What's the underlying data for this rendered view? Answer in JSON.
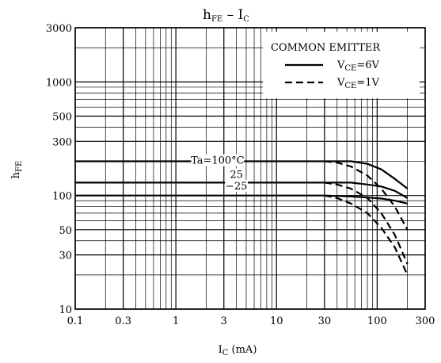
{
  "chart_data": {
    "type": "line",
    "title_main": "h",
    "title_main_sub": "FE",
    "title_dash": "–",
    "title_x": "I",
    "title_x_sub": "C",
    "xlabel_main": "I",
    "xlabel_sub": "C",
    "xlabel_unit": "(mA)",
    "ylabel_main": "h",
    "ylabel_sub": "FE",
    "x_scale": "log",
    "y_scale": "log",
    "xlim": [
      0.1,
      300
    ],
    "ylim": [
      10,
      3000
    ],
    "x_ticks": [
      {
        "value": 0.1,
        "label": "0.1"
      },
      {
        "value": 0.3,
        "label": "0.3"
      },
      {
        "value": 1,
        "label": "1"
      },
      {
        "value": 3,
        "label": "3"
      },
      {
        "value": 10,
        "label": "10"
      },
      {
        "value": 30,
        "label": "30"
      },
      {
        "value": 100,
        "label": "100"
      },
      {
        "value": 300,
        "label": "300"
      }
    ],
    "y_ticks": [
      {
        "value": 10,
        "label": "10"
      },
      {
        "value": 30,
        "label": "30"
      },
      {
        "value": 50,
        "label": "50"
      },
      {
        "value": 100,
        "label": "100"
      },
      {
        "value": 300,
        "label": "300"
      },
      {
        "value": 500,
        "label": "500"
      },
      {
        "value": 1000,
        "label": "1000"
      },
      {
        "value": 3000,
        "label": "3000"
      }
    ],
    "grid": true,
    "legend": {
      "title": "COMMON EMITTER",
      "placement": "top-right",
      "entries": [
        {
          "style": "solid",
          "label_main": "V",
          "label_sub": "CE",
          "label_rest": "=6V"
        },
        {
          "style": "dashed",
          "label_main": "V",
          "label_sub": "CE",
          "label_rest": "=1V"
        }
      ]
    },
    "annotations": [
      {
        "text": "Ta=100°C",
        "x": 2.6,
        "y": 190
      },
      {
        "text": "25",
        "x": 4.0,
        "y": 143
      },
      {
        "text": "−25",
        "x": 4.0,
        "y": 113
      }
    ],
    "series": [
      {
        "group": "Ta=100°C",
        "style": "solid",
        "x": [
          0.1,
          10,
          30,
          55,
          80,
          110,
          150,
          200
        ],
        "y": [
          200,
          200,
          200,
          200,
          190,
          170,
          140,
          115
        ]
      },
      {
        "group": "Ta=100°C",
        "style": "dashed",
        "x": [
          30,
          40,
          55,
          80,
          110,
          150,
          200
        ],
        "y": [
          200,
          195,
          180,
          150,
          115,
          80,
          50
        ]
      },
      {
        "group": "25",
        "style": "solid",
        "x": [
          0.1,
          10,
          30,
          55,
          80,
          110,
          150,
          200
        ],
        "y": [
          130,
          130,
          130,
          130,
          125,
          120,
          110,
          95
        ]
      },
      {
        "group": "25",
        "style": "dashed",
        "x": [
          30,
          40,
          55,
          80,
          110,
          150,
          200
        ],
        "y": [
          130,
          125,
          115,
          95,
          70,
          45,
          25
        ]
      },
      {
        "group": "−25",
        "style": "solid",
        "x": [
          0.1,
          10,
          30,
          55,
          80,
          110,
          150,
          200
        ],
        "y": [
          100,
          100,
          100,
          98,
          96,
          94,
          90,
          85
        ]
      },
      {
        "group": "−25",
        "style": "dashed",
        "x": [
          30,
          40,
          55,
          80,
          110,
          150,
          200
        ],
        "y": [
          100,
          95,
          85,
          70,
          52,
          35,
          20
        ]
      }
    ]
  }
}
